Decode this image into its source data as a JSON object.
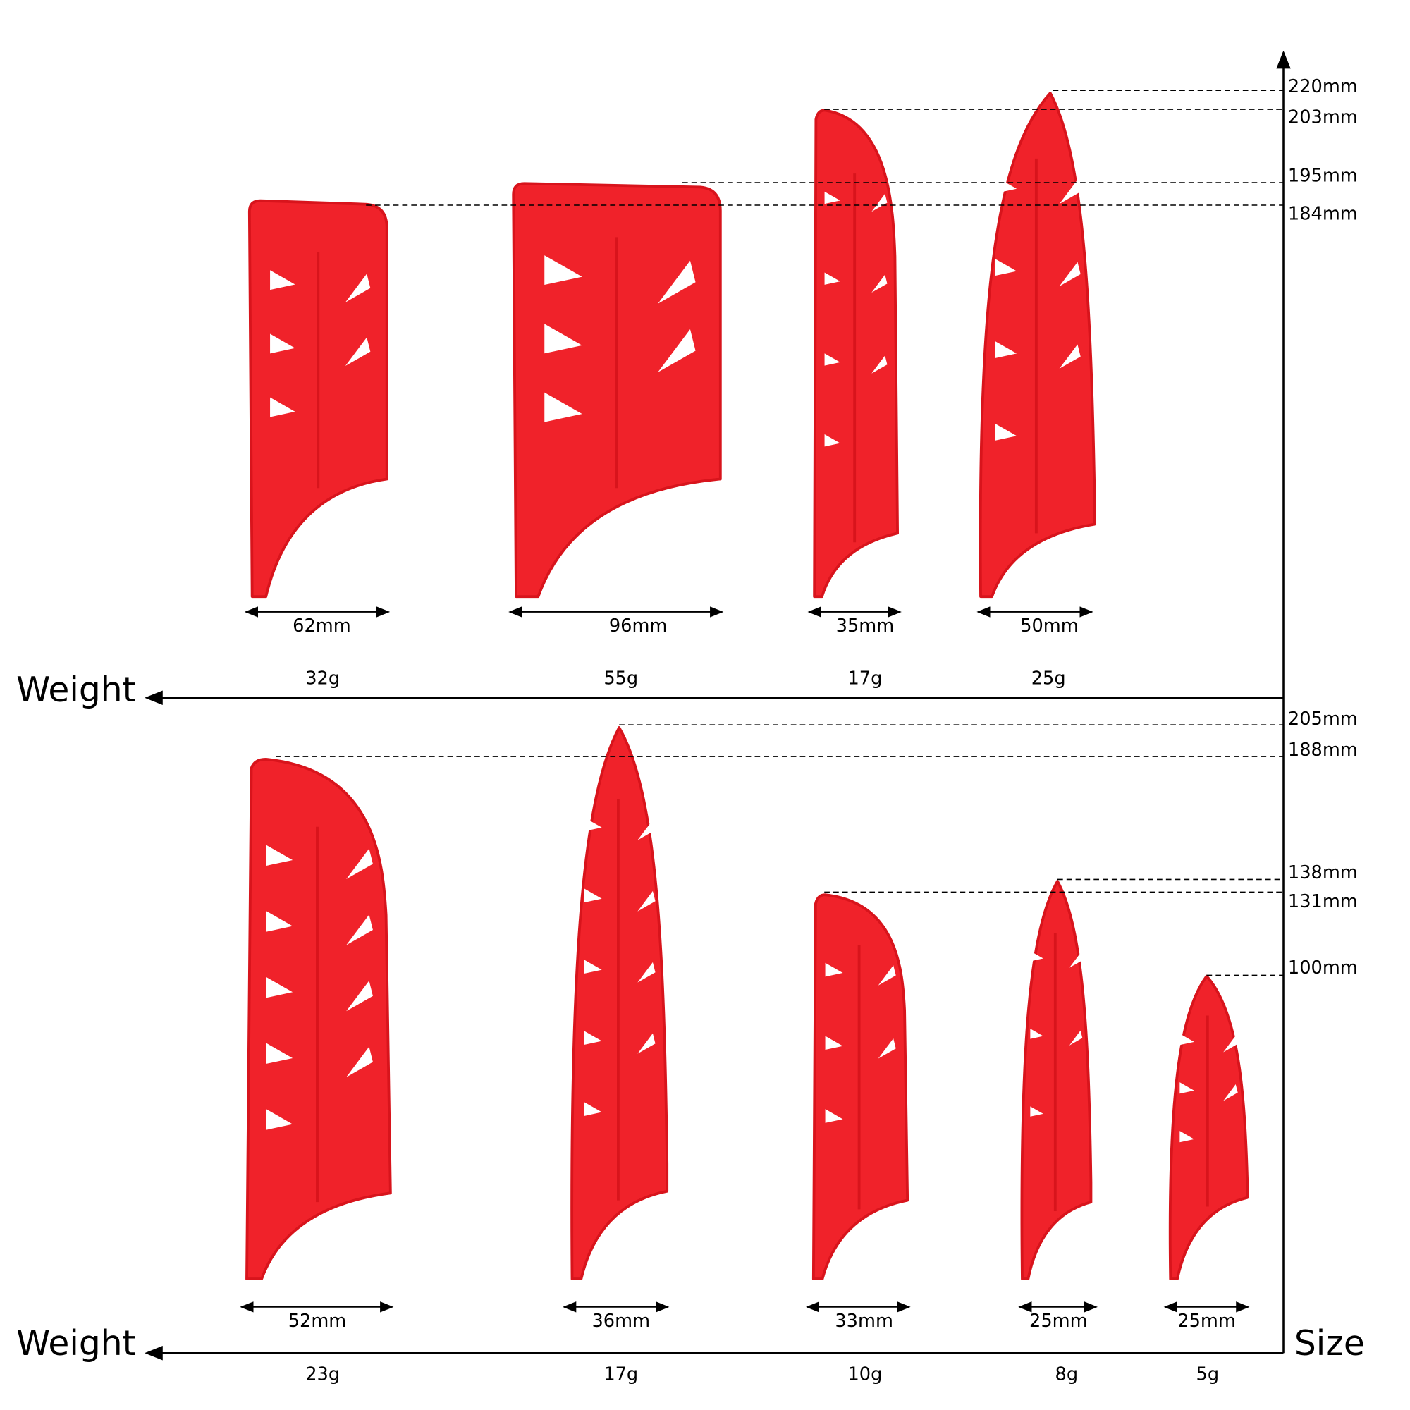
{
  "colors": {
    "sheath": "#f0222a",
    "sheath_edge": "#d8141c",
    "slot": "#ffffff",
    "line": "#000000"
  },
  "axes": {
    "weight_label_top": "Weight",
    "weight_label_bottom": "Weight",
    "size_label": "Size"
  },
  "top_row": [
    {
      "width": "62mm",
      "weight": "32g",
      "height": "184mm",
      "shape": "cleaver"
    },
    {
      "width": "96mm",
      "weight": "55g",
      "height": "195mm",
      "shape": "cleaver"
    },
    {
      "width": "35mm",
      "weight": "17g",
      "height": "203mm",
      "shape": "rounded"
    },
    {
      "width": "50mm",
      "weight": "25g",
      "height": "220mm",
      "shape": "pointed"
    }
  ],
  "bottom_row": [
    {
      "width": "52mm",
      "weight": "23g",
      "height": "188mm",
      "shape": "rounded"
    },
    {
      "width": "36mm",
      "weight": "17g",
      "height": "205mm",
      "shape": "pointed"
    },
    {
      "width": "33mm",
      "weight": "10g",
      "height": "131mm",
      "shape": "rounded"
    },
    {
      "width": "25mm",
      "weight": "8g",
      "height": "138mm",
      "shape": "pointed"
    },
    {
      "width": "25mm",
      "weight": "5g",
      "height": "100mm",
      "shape": "pointed"
    }
  ]
}
